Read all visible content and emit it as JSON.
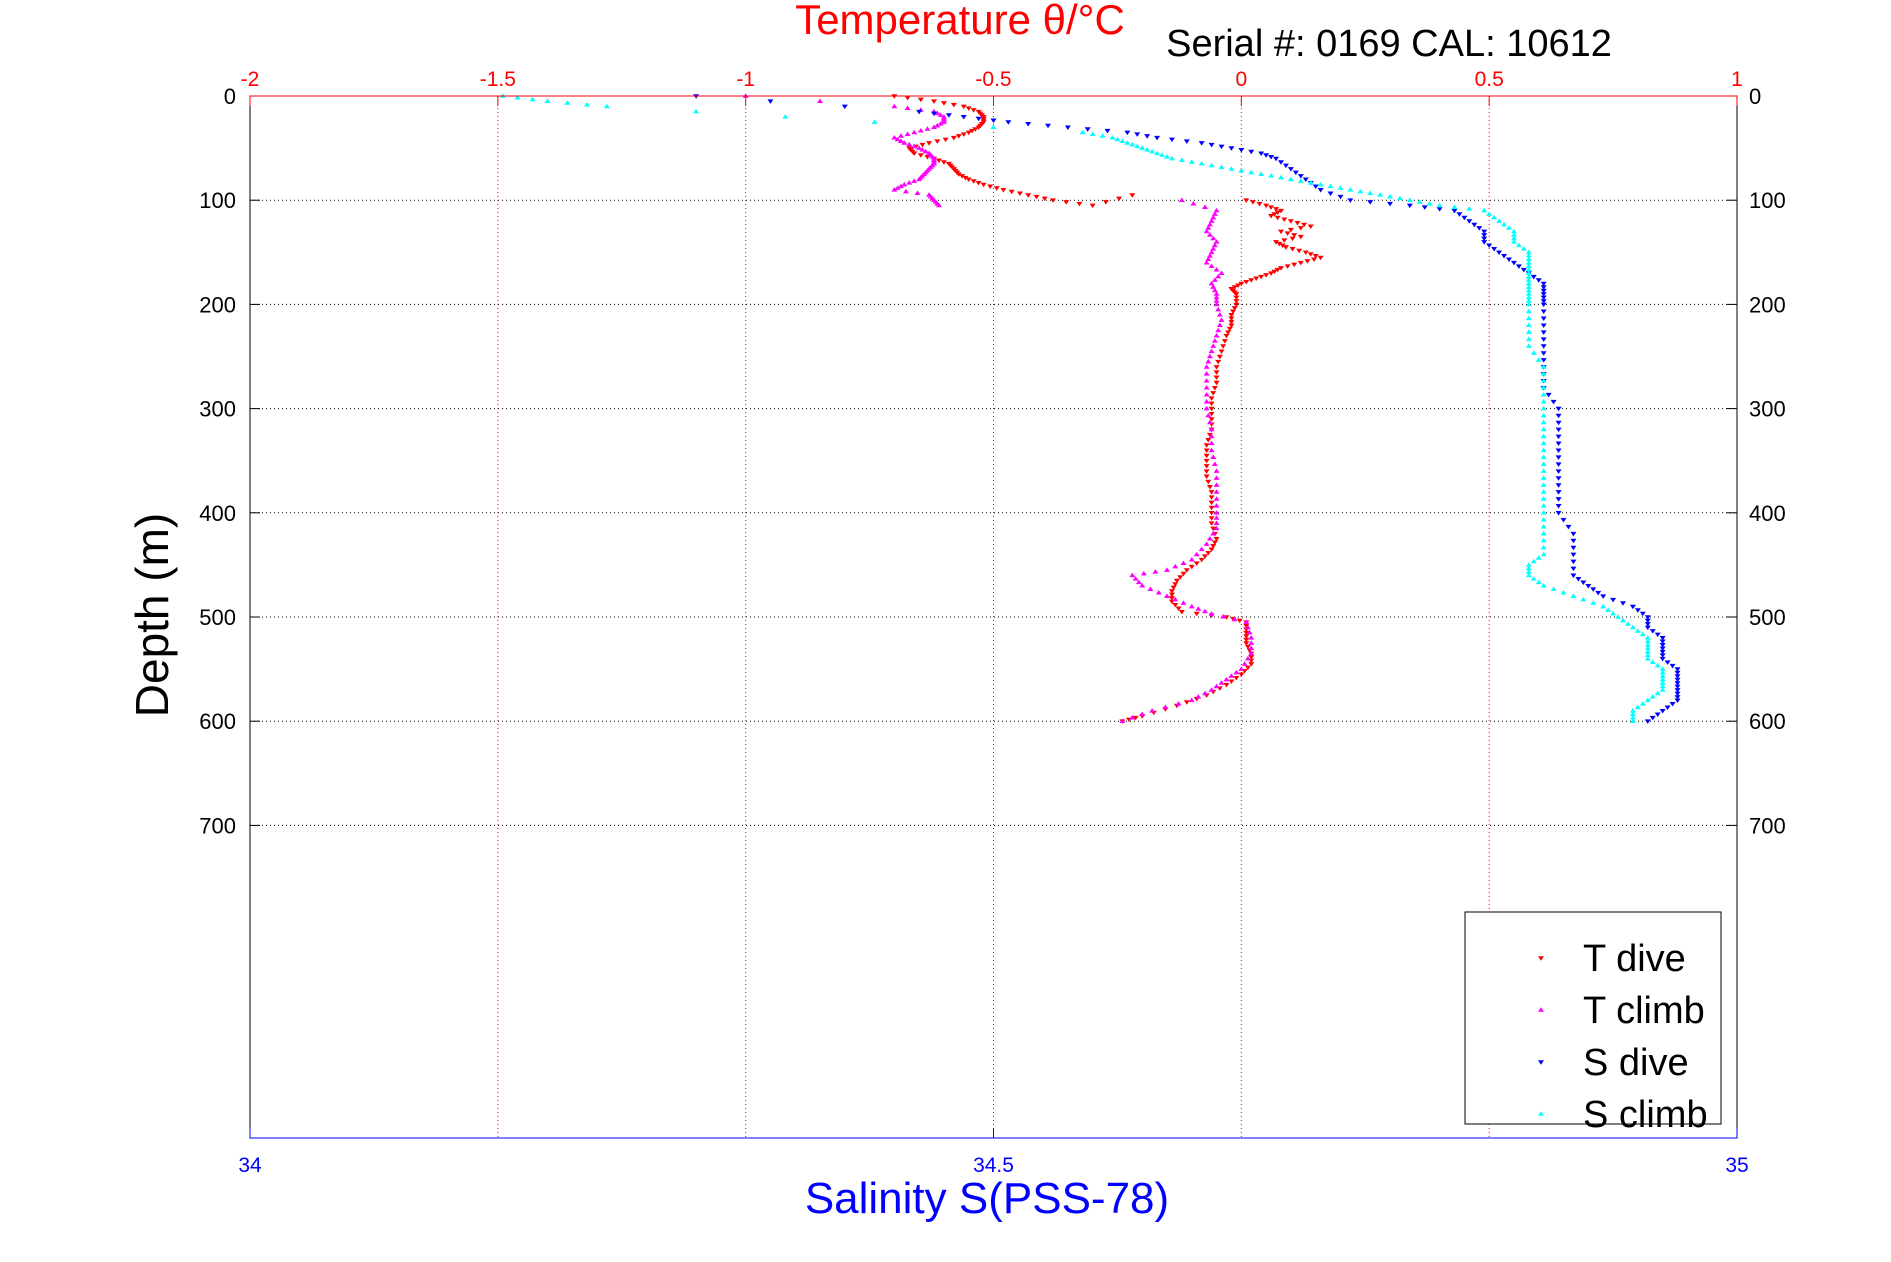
{
  "chart_data": {
    "type": "scatter",
    "title": "Temperature θ/°C",
    "subtitle": "Serial #: 0169 CAL: 10612",
    "ylabel": "Depth (m)",
    "xlabel_bottom": "Salinity S(PSS-78)",
    "y_axis": {
      "range": [
        0,
        1000
      ],
      "reversed": true,
      "ticks": [
        0,
        100,
        200,
        300,
        400,
        500,
        600,
        700
      ]
    },
    "x_axis_top": {
      "quantity": "temperature",
      "range": [
        -2,
        1
      ],
      "ticks": [
        -2,
        -1.5,
        -1,
        -0.5,
        0,
        0.5,
        1
      ]
    },
    "x_axis_bottom": {
      "quantity": "salinity",
      "range": [
        34,
        35
      ],
      "ticks": [
        34,
        34.5,
        35
      ]
    },
    "grid": true,
    "legend_position": "bottom-right",
    "series": [
      {
        "name": "T dive",
        "axis": "temperature",
        "color": "#ff0000",
        "marker": "triangle-down",
        "points": [
          [
            -0.7,
            0
          ],
          [
            -0.62,
            5
          ],
          [
            -0.56,
            10
          ],
          [
            -0.53,
            15
          ],
          [
            -0.52,
            20
          ],
          [
            -0.52,
            25
          ],
          [
            -0.53,
            30
          ],
          [
            -0.55,
            35
          ],
          [
            -0.58,
            40
          ],
          [
            -0.63,
            45
          ],
          [
            -0.67,
            50
          ],
          [
            -0.66,
            55
          ],
          [
            -0.62,
            60
          ],
          [
            -0.59,
            65
          ],
          [
            -0.58,
            70
          ],
          [
            -0.57,
            75
          ],
          [
            -0.55,
            80
          ],
          [
            -0.52,
            85
          ],
          [
            -0.48,
            90
          ],
          [
            -0.43,
            95
          ],
          [
            -0.38,
            100
          ],
          [
            -0.3,
            105
          ],
          [
            -0.22,
            95
          ],
          [
            0.01,
            100
          ],
          [
            0.05,
            105
          ],
          [
            0.08,
            110
          ],
          [
            0.06,
            115
          ],
          [
            0.1,
            120
          ],
          [
            0.14,
            125
          ],
          [
            0.08,
            130
          ],
          [
            0.12,
            135
          ],
          [
            0.07,
            140
          ],
          [
            0.09,
            145
          ],
          [
            0.13,
            150
          ],
          [
            0.16,
            155
          ],
          [
            0.12,
            160
          ],
          [
            0.08,
            165
          ],
          [
            0.06,
            170
          ],
          [
            0.03,
            175
          ],
          [
            0.0,
            180
          ],
          [
            -0.02,
            185
          ],
          [
            -0.01,
            190
          ],
          [
            -0.01,
            200
          ],
          [
            -0.02,
            210
          ],
          [
            -0.02,
            220
          ],
          [
            -0.03,
            230
          ],
          [
            -0.04,
            245
          ],
          [
            -0.05,
            260
          ],
          [
            -0.05,
            275
          ],
          [
            -0.06,
            290
          ],
          [
            -0.06,
            305
          ],
          [
            -0.06,
            320
          ],
          [
            -0.07,
            335
          ],
          [
            -0.07,
            350
          ],
          [
            -0.07,
            365
          ],
          [
            -0.06,
            380
          ],
          [
            -0.06,
            395
          ],
          [
            -0.06,
            410
          ],
          [
            -0.05,
            425
          ],
          [
            -0.06,
            435
          ],
          [
            -0.08,
            445
          ],
          [
            -0.11,
            455
          ],
          [
            -0.13,
            465
          ],
          [
            -0.14,
            475
          ],
          [
            -0.14,
            485
          ],
          [
            -0.12,
            495
          ],
          [
            -0.03,
            500
          ],
          [
            0.01,
            505
          ],
          [
            0.01,
            515
          ],
          [
            0.01,
            525
          ],
          [
            0.02,
            535
          ],
          [
            0.02,
            545
          ],
          [
            0.0,
            555
          ],
          [
            -0.03,
            565
          ],
          [
            -0.07,
            575
          ],
          [
            -0.13,
            585
          ],
          [
            -0.2,
            595
          ],
          [
            -0.24,
            600
          ]
        ]
      },
      {
        "name": "T climb",
        "axis": "temperature",
        "color": "#ff00ff",
        "marker": "triangle-up",
        "points": [
          [
            -1.0,
            0
          ],
          [
            -0.85,
            5
          ],
          [
            -0.7,
            10
          ],
          [
            -0.62,
            15
          ],
          [
            -0.6,
            20
          ],
          [
            -0.6,
            25
          ],
          [
            -0.62,
            30
          ],
          [
            -0.66,
            35
          ],
          [
            -0.7,
            40
          ],
          [
            -0.68,
            45
          ],
          [
            -0.65,
            50
          ],
          [
            -0.63,
            55
          ],
          [
            -0.62,
            60
          ],
          [
            -0.62,
            65
          ],
          [
            -0.63,
            70
          ],
          [
            -0.64,
            75
          ],
          [
            -0.65,
            80
          ],
          [
            -0.68,
            85
          ],
          [
            -0.7,
            90
          ],
          [
            -0.63,
            95
          ],
          [
            -0.62,
            100
          ],
          [
            -0.61,
            105
          ],
          [
            -0.12,
            100
          ],
          [
            -0.05,
            110
          ],
          [
            -0.06,
            120
          ],
          [
            -0.07,
            130
          ],
          [
            -0.05,
            140
          ],
          [
            -0.06,
            150
          ],
          [
            -0.07,
            160
          ],
          [
            -0.04,
            170
          ],
          [
            -0.06,
            180
          ],
          [
            -0.05,
            190
          ],
          [
            -0.05,
            200
          ],
          [
            -0.04,
            215
          ],
          [
            -0.05,
            230
          ],
          [
            -0.06,
            245
          ],
          [
            -0.07,
            260
          ],
          [
            -0.07,
            280
          ],
          [
            -0.07,
            300
          ],
          [
            -0.06,
            320
          ],
          [
            -0.06,
            340
          ],
          [
            -0.05,
            360
          ],
          [
            -0.05,
            380
          ],
          [
            -0.05,
            400
          ],
          [
            -0.05,
            415
          ],
          [
            -0.07,
            430
          ],
          [
            -0.1,
            445
          ],
          [
            -0.15,
            455
          ],
          [
            -0.22,
            460
          ],
          [
            -0.2,
            470
          ],
          [
            -0.15,
            480
          ],
          [
            -0.1,
            490
          ],
          [
            -0.06,
            497
          ],
          [
            0.01,
            505
          ],
          [
            0.02,
            520
          ],
          [
            0.02,
            535
          ],
          [
            0.0,
            550
          ],
          [
            -0.03,
            560
          ],
          [
            -0.06,
            570
          ],
          [
            -0.1,
            580
          ],
          [
            -0.18,
            590
          ],
          [
            -0.24,
            600
          ]
        ]
      },
      {
        "name": "S dive",
        "axis": "salinity",
        "color": "#0000ff",
        "marker": "triangle-down",
        "points": [
          [
            34.3,
            0
          ],
          [
            34.35,
            5
          ],
          [
            34.4,
            10
          ],
          [
            34.45,
            15
          ],
          [
            34.48,
            20
          ],
          [
            34.51,
            25
          ],
          [
            34.55,
            30
          ],
          [
            34.59,
            35
          ],
          [
            34.61,
            40
          ],
          [
            34.64,
            45
          ],
          [
            34.66,
            50
          ],
          [
            34.68,
            55
          ],
          [
            34.69,
            60
          ],
          [
            34.7,
            70
          ],
          [
            34.71,
            80
          ],
          [
            34.72,
            90
          ],
          [
            34.74,
            100
          ],
          [
            34.78,
            105
          ],
          [
            34.81,
            110
          ],
          [
            34.82,
            120
          ],
          [
            34.83,
            130
          ],
          [
            34.83,
            140
          ],
          [
            34.84,
            150
          ],
          [
            34.85,
            160
          ],
          [
            34.86,
            170
          ],
          [
            34.87,
            180
          ],
          [
            34.87,
            190
          ],
          [
            34.87,
            200
          ],
          [
            34.87,
            220
          ],
          [
            34.87,
            240
          ],
          [
            34.87,
            260
          ],
          [
            34.87,
            280
          ],
          [
            34.88,
            300
          ],
          [
            34.88,
            320
          ],
          [
            34.88,
            340
          ],
          [
            34.88,
            360
          ],
          [
            34.88,
            380
          ],
          [
            34.88,
            400
          ],
          [
            34.89,
            420
          ],
          [
            34.89,
            440
          ],
          [
            34.89,
            460
          ],
          [
            34.9,
            470
          ],
          [
            34.91,
            480
          ],
          [
            34.93,
            490
          ],
          [
            34.94,
            500
          ],
          [
            34.94,
            510
          ],
          [
            34.95,
            520
          ],
          [
            34.95,
            530
          ],
          [
            34.95,
            540
          ],
          [
            34.96,
            550
          ],
          [
            34.96,
            560
          ],
          [
            34.96,
            570
          ],
          [
            34.96,
            580
          ],
          [
            34.95,
            590
          ],
          [
            34.94,
            600
          ]
        ]
      },
      {
        "name": "S climb",
        "axis": "salinity",
        "color": "#00ffff",
        "marker": "triangle-up",
        "points": [
          [
            34.17,
            0
          ],
          [
            34.2,
            5
          ],
          [
            34.24,
            10
          ],
          [
            34.3,
            15
          ],
          [
            34.36,
            20
          ],
          [
            34.42,
            25
          ],
          [
            34.5,
            30
          ],
          [
            34.56,
            35
          ],
          [
            34.58,
            40
          ],
          [
            34.59,
            45
          ],
          [
            34.6,
            50
          ],
          [
            34.61,
            55
          ],
          [
            34.62,
            60
          ],
          [
            34.64,
            65
          ],
          [
            34.66,
            70
          ],
          [
            34.68,
            75
          ],
          [
            34.7,
            80
          ],
          [
            34.72,
            85
          ],
          [
            34.74,
            90
          ],
          [
            34.76,
            95
          ],
          [
            34.78,
            100
          ],
          [
            34.8,
            105
          ],
          [
            34.83,
            110
          ],
          [
            34.84,
            120
          ],
          [
            34.85,
            130
          ],
          [
            34.85,
            140
          ],
          [
            34.86,
            150
          ],
          [
            34.86,
            160
          ],
          [
            34.86,
            170
          ],
          [
            34.86,
            180
          ],
          [
            34.86,
            190
          ],
          [
            34.86,
            200
          ],
          [
            34.86,
            220
          ],
          [
            34.86,
            240
          ],
          [
            34.87,
            260
          ],
          [
            34.87,
            280
          ],
          [
            34.87,
            300
          ],
          [
            34.87,
            320
          ],
          [
            34.87,
            340
          ],
          [
            34.87,
            360
          ],
          [
            34.87,
            380
          ],
          [
            34.87,
            400
          ],
          [
            34.87,
            420
          ],
          [
            34.87,
            440
          ],
          [
            34.86,
            450
          ],
          [
            34.86,
            460
          ],
          [
            34.87,
            470
          ],
          [
            34.89,
            480
          ],
          [
            34.91,
            490
          ],
          [
            34.92,
            500
          ],
          [
            34.93,
            510
          ],
          [
            34.94,
            520
          ],
          [
            34.94,
            530
          ],
          [
            34.94,
            540
          ],
          [
            34.95,
            550
          ],
          [
            34.95,
            560
          ],
          [
            34.95,
            570
          ],
          [
            34.94,
            580
          ],
          [
            34.93,
            590
          ],
          [
            34.93,
            600
          ]
        ]
      }
    ]
  }
}
